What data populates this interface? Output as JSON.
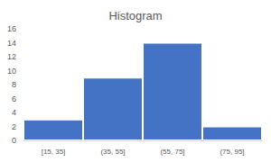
{
  "chart_data": {
    "type": "bar",
    "title": "Histogram",
    "categories": [
      "[15, 35]",
      "(35, 55]",
      "(55, 75]",
      "(75, 95]"
    ],
    "values": [
      3,
      9,
      14,
      2
    ],
    "color": "#4472c4",
    "ylim": [
      0,
      16
    ],
    "yticks": [
      0,
      2,
      4,
      6,
      8,
      10,
      12,
      14,
      16
    ],
    "grid": false
  }
}
